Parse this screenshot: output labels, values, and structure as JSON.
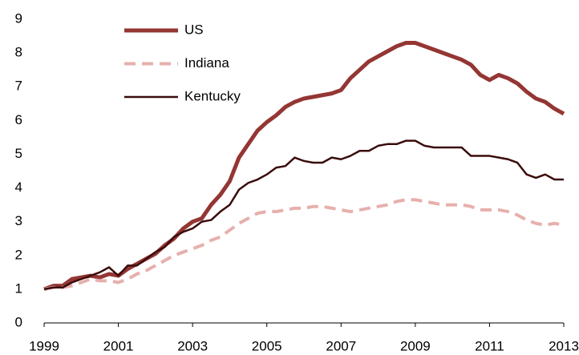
{
  "chart_data": {
    "type": "line",
    "x": [
      1999,
      1999.25,
      1999.5,
      1999.75,
      2000,
      2000.25,
      2000.5,
      2000.75,
      2001,
      2001.25,
      2001.5,
      2001.75,
      2002,
      2002.25,
      2002.5,
      2002.75,
      2003,
      2003.25,
      2003.5,
      2003.75,
      2004,
      2004.25,
      2004.5,
      2004.75,
      2005,
      2005.25,
      2005.5,
      2005.75,
      2006,
      2006.25,
      2006.5,
      2006.75,
      2007,
      2007.25,
      2007.5,
      2007.75,
      2008,
      2008.25,
      2008.5,
      2008.75,
      2009,
      2009.25,
      2009.5,
      2009.75,
      2010,
      2010.25,
      2010.5,
      2010.75,
      2011,
      2011.25,
      2011.5,
      2011.75,
      2012,
      2012.25,
      2012.5,
      2012.75,
      2013
    ],
    "series": [
      {
        "name": "US",
        "color": "#943634",
        "width": 5,
        "dashed": false,
        "values": [
          1.0,
          1.1,
          1.1,
          1.3,
          1.35,
          1.4,
          1.35,
          1.45,
          1.4,
          1.6,
          1.75,
          1.9,
          2.05,
          2.3,
          2.5,
          2.8,
          3.0,
          3.1,
          3.5,
          3.8,
          4.2,
          4.9,
          5.3,
          5.7,
          5.95,
          6.15,
          6.4,
          6.55,
          6.65,
          6.7,
          6.75,
          6.8,
          6.9,
          7.25,
          7.5,
          7.75,
          7.9,
          8.05,
          8.2,
          8.3,
          8.3,
          8.2,
          8.1,
          8.0,
          7.9,
          7.8,
          7.65,
          7.35,
          7.2,
          7.35,
          7.25,
          7.1,
          6.85,
          6.65,
          6.55,
          6.35,
          6.2
        ]
      },
      {
        "name": "Indiana",
        "color": "#e6b0ad",
        "width": 4,
        "dashed": true,
        "values": [
          1.0,
          1.05,
          1.05,
          1.1,
          1.2,
          1.3,
          1.25,
          1.25,
          1.2,
          1.3,
          1.45,
          1.55,
          1.7,
          1.85,
          2.0,
          2.1,
          2.2,
          2.3,
          2.45,
          2.55,
          2.75,
          2.95,
          3.1,
          3.25,
          3.3,
          3.3,
          3.35,
          3.4,
          3.4,
          3.45,
          3.45,
          3.4,
          3.35,
          3.3,
          3.35,
          3.4,
          3.45,
          3.5,
          3.6,
          3.65,
          3.65,
          3.6,
          3.55,
          3.5,
          3.5,
          3.5,
          3.45,
          3.35,
          3.35,
          3.35,
          3.3,
          3.2,
          3.05,
          2.95,
          2.9,
          2.95,
          2.9
        ]
      },
      {
        "name": "Kentucky",
        "color": "#3b0c0c",
        "width": 2.5,
        "dashed": false,
        "values": [
          1.0,
          1.05,
          1.05,
          1.2,
          1.3,
          1.4,
          1.5,
          1.65,
          1.4,
          1.7,
          1.7,
          1.9,
          2.1,
          2.25,
          2.55,
          2.7,
          2.8,
          3.0,
          3.05,
          3.3,
          3.5,
          3.95,
          4.15,
          4.25,
          4.4,
          4.6,
          4.65,
          4.9,
          4.8,
          4.75,
          4.75,
          4.9,
          4.85,
          4.95,
          5.1,
          5.1,
          5.25,
          5.3,
          5.3,
          5.4,
          5.4,
          5.25,
          5.2,
          5.2,
          5.2,
          5.2,
          4.95,
          4.95,
          4.95,
          4.9,
          4.85,
          4.75,
          4.4,
          4.3,
          4.4,
          4.25,
          4.25
        ]
      }
    ],
    "xlim": [
      1999,
      2013
    ],
    "xticks": [
      1999,
      2001,
      2003,
      2005,
      2007,
      2009,
      2011,
      2013
    ],
    "ylim": [
      0,
      9
    ],
    "yticks": [
      0,
      1,
      2,
      3,
      4,
      5,
      6,
      7,
      8,
      9
    ],
    "grid": false,
    "legend": "top-left"
  }
}
